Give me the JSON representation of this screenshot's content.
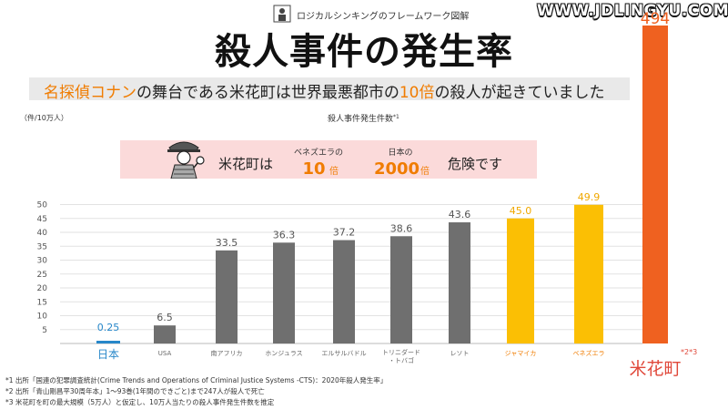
{
  "header": {
    "series_label": "ロジカルシンキングのフレームワーク図解",
    "icon": "person-at-board-icon"
  },
  "watermark": "WWW.JDLINGYU.COM",
  "title": "殺人事件の発生率",
  "subtitle": {
    "hl1": "名探偵コナン",
    "part2": "の舞台である米花町は世界最悪都市の",
    "hl2": "10倍",
    "part3": "の殺人が起きていました"
  },
  "colors": {
    "gray": "#6f6f6f",
    "yellow": "#fbbf04",
    "orange": "#ef6120",
    "blue": "#2787c9",
    "accent": "#f07c00"
  },
  "callout": {
    "lead": "米花町は",
    "c1_label": "ベネズエラの",
    "c1_num": "10",
    "c1_unit": "倍",
    "c2_label": "日本の",
    "c2_num": "2000",
    "c2_unit": "倍",
    "tail": "危険です",
    "icon": "detective-icon"
  },
  "chart_data": {
    "type": "bar",
    "title": "殺人事件発生件数",
    "title_note": "*1",
    "ylabel": "（件/10万人）",
    "yticks": [
      5,
      10,
      15,
      20,
      25,
      30,
      35,
      40,
      45,
      50
    ],
    "ylim": [
      0,
      52
    ],
    "grid": true,
    "categories": [
      "日本",
      "USA",
      "南アフリカ",
      "ホンジュラス",
      "エルサルバドル",
      "トリニダード・トバゴ",
      "レソト",
      "ジャマイカ",
      "ベネズエラ",
      "米花町"
    ],
    "values": [
      0.25,
      6.5,
      33.5,
      36.3,
      37.2,
      38.6,
      43.6,
      45.0,
      49.9,
      494
    ],
    "value_labels": [
      "0.25",
      "6.5",
      "33.5",
      "36.3",
      "37.2",
      "38.6",
      "43.6",
      "45.0",
      "49.9",
      "494"
    ],
    "bar_colors": [
      "blue",
      "gray",
      "gray",
      "gray",
      "gray",
      "gray",
      "gray",
      "yellow",
      "yellow",
      "orange"
    ],
    "beika_note": "*2*3"
  },
  "footnotes": [
    "*1 出所「国連の犯罪調査統計(Crime Trends and Operations of Criminal Justice Systems -CTS)：2020年殺人発生率」",
    "*2 出所「青山剛昌平30周年本」1～93巻(1年間のできごと)まで247人が殺人で死亡",
    "*3 米花町を町の最大規模（5万人）と仮定し、10万人当たりの殺人事件発生件数を推定"
  ]
}
